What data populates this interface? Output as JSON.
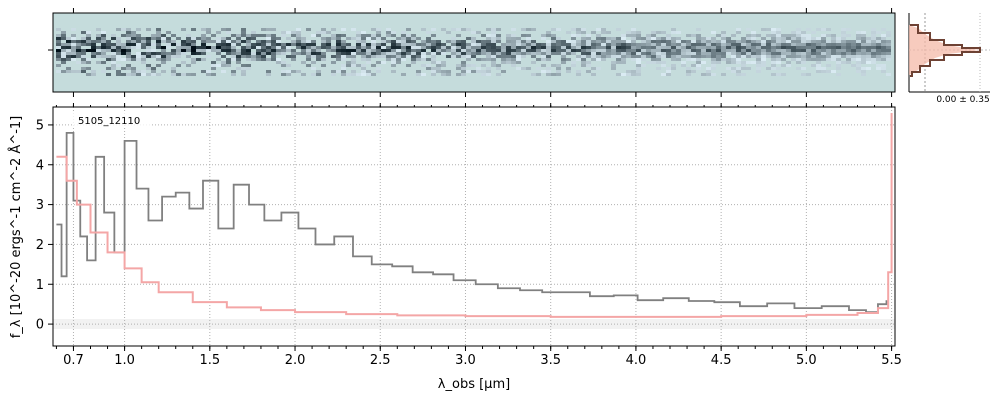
{
  "chart_data": {
    "type": "line",
    "object_label": "5105_12110",
    "xlabel": "λ_obs [μm]",
    "ylabel": "f_λ [10^-20 ergs^-1 cm^-2 Å^-1]",
    "x_ticks": [
      "0.7",
      "1.0",
      "1.5",
      "2.0",
      "2.5",
      "3.0",
      "3.5",
      "4.0",
      "4.5",
      "5.0",
      "5.5"
    ],
    "x_tick_values": [
      0.7,
      1.0,
      1.5,
      2.0,
      2.5,
      3.0,
      3.5,
      4.0,
      4.5,
      5.0,
      5.5
    ],
    "y_ticks": [
      "0",
      "1",
      "2",
      "3",
      "4",
      "5"
    ],
    "xlim": [
      0.58,
      5.52
    ],
    "ylim": [
      -0.55,
      5.45
    ],
    "grid": true,
    "series": [
      {
        "role": "flux",
        "color": "#808080",
        "x": [
          0.6,
          0.63,
          0.66,
          0.7,
          0.74,
          0.78,
          0.83,
          0.88,
          0.94,
          1.0,
          1.07,
          1.14,
          1.22,
          1.3,
          1.38,
          1.46,
          1.55,
          1.64,
          1.73,
          1.82,
          1.92,
          2.02,
          2.12,
          2.23,
          2.34,
          2.45,
          2.57,
          2.69,
          2.81,
          2.93,
          3.06,
          3.19,
          3.32,
          3.45,
          3.59,
          3.73,
          3.87,
          4.01,
          4.16,
          4.31,
          4.46,
          4.61,
          4.77,
          4.93,
          5.09,
          5.25,
          5.35,
          5.42,
          5.47
        ],
        "y": [
          2.5,
          1.2,
          4.8,
          3.1,
          2.2,
          1.6,
          4.2,
          2.8,
          1.8,
          4.6,
          3.4,
          2.6,
          3.2,
          3.3,
          2.9,
          3.6,
          2.4,
          3.5,
          3.0,
          2.6,
          2.8,
          2.4,
          2.0,
          2.2,
          1.7,
          1.5,
          1.45,
          1.3,
          1.25,
          1.1,
          1.0,
          0.9,
          0.85,
          0.8,
          0.8,
          0.7,
          0.72,
          0.6,
          0.65,
          0.58,
          0.55,
          0.45,
          0.52,
          0.4,
          0.45,
          0.35,
          0.3,
          0.5,
          0.6
        ]
      },
      {
        "role": "uncertainty",
        "color": "#f4a6a6",
        "x": [
          0.6,
          0.66,
          0.72,
          0.8,
          0.9,
          1.0,
          1.1,
          1.2,
          1.4,
          1.6,
          1.8,
          2.0,
          2.3,
          2.6,
          3.0,
          3.5,
          4.0,
          4.5,
          5.0,
          5.3,
          5.42,
          5.48,
          5.5
        ],
        "y": [
          4.2,
          3.6,
          3.0,
          2.3,
          1.8,
          1.4,
          1.05,
          0.8,
          0.55,
          0.42,
          0.35,
          0.3,
          0.25,
          0.22,
          0.2,
          0.18,
          0.18,
          0.2,
          0.23,
          0.28,
          0.4,
          1.3,
          5.3
        ]
      }
    ]
  },
  "spectrum_2d": {
    "background_color": "#c5dcdc",
    "trace_color": "#3e5d78"
  },
  "profile": {
    "label": "0.00 ± 0.35",
    "line_color": "#6e4234",
    "fill_color": "#f4b9a8"
  }
}
